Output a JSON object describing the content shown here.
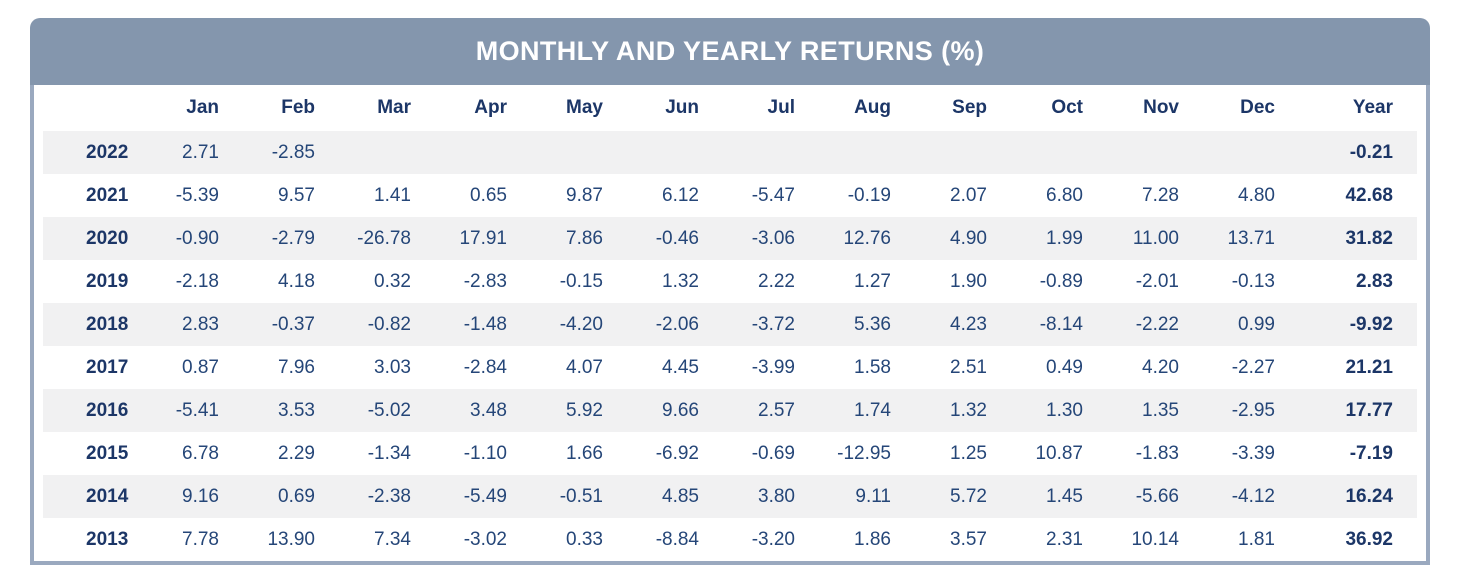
{
  "title": "MONTHLY AND YEARLY RETURNS (%)",
  "colors": {
    "header_bg": "#8496AD",
    "body_border": "#9AA9BF",
    "heading_text": "#1C3667",
    "value_text": "#254678",
    "row_stripe": "#F1F1F2",
    "title_text": "#FFFFFF"
  },
  "chart_data": {
    "type": "table",
    "title": "MONTHLY AND YEARLY RETURNS (%)",
    "columns": [
      "Jan",
      "Feb",
      "Mar",
      "Apr",
      "May",
      "Jun",
      "Jul",
      "Aug",
      "Sep",
      "Oct",
      "Nov",
      "Dec",
      "Year"
    ],
    "rows": [
      {
        "year": "2022",
        "monthly": [
          "2.71",
          "-2.85",
          "",
          "",
          "",
          "",
          "",
          "",
          "",
          "",
          "",
          ""
        ],
        "year_total": "-0.21"
      },
      {
        "year": "2021",
        "monthly": [
          "-5.39",
          "9.57",
          "1.41",
          "0.65",
          "9.87",
          "6.12",
          "-5.47",
          "-0.19",
          "2.07",
          "6.80",
          "7.28",
          "4.80"
        ],
        "year_total": "42.68"
      },
      {
        "year": "2020",
        "monthly": [
          "-0.90",
          "-2.79",
          "-26.78",
          "17.91",
          "7.86",
          "-0.46",
          "-3.06",
          "12.76",
          "4.90",
          "1.99",
          "11.00",
          "13.71"
        ],
        "year_total": "31.82"
      },
      {
        "year": "2019",
        "monthly": [
          "-2.18",
          "4.18",
          "0.32",
          "-2.83",
          "-0.15",
          "1.32",
          "2.22",
          "1.27",
          "1.90",
          "-0.89",
          "-2.01",
          "-0.13"
        ],
        "year_total": "2.83"
      },
      {
        "year": "2018",
        "monthly": [
          "2.83",
          "-0.37",
          "-0.82",
          "-1.48",
          "-4.20",
          "-2.06",
          "-3.72",
          "5.36",
          "4.23",
          "-8.14",
          "-2.22",
          "0.99"
        ],
        "year_total": "-9.92"
      },
      {
        "year": "2017",
        "monthly": [
          "0.87",
          "7.96",
          "3.03",
          "-2.84",
          "4.07",
          "4.45",
          "-3.99",
          "1.58",
          "2.51",
          "0.49",
          "4.20",
          "-2.27"
        ],
        "year_total": "21.21"
      },
      {
        "year": "2016",
        "monthly": [
          "-5.41",
          "3.53",
          "-5.02",
          "3.48",
          "5.92",
          "9.66",
          "2.57",
          "1.74",
          "1.32",
          "1.30",
          "1.35",
          "-2.95"
        ],
        "year_total": "17.77"
      },
      {
        "year": "2015",
        "monthly": [
          "6.78",
          "2.29",
          "-1.34",
          "-1.10",
          "1.66",
          "-6.92",
          "-0.69",
          "-12.95",
          "1.25",
          "10.87",
          "-1.83",
          "-3.39"
        ],
        "year_total": "-7.19"
      },
      {
        "year": "2014",
        "monthly": [
          "9.16",
          "0.69",
          "-2.38",
          "-5.49",
          "-0.51",
          "4.85",
          "3.80",
          "9.11",
          "5.72",
          "1.45",
          "-5.66",
          "-4.12"
        ],
        "year_total": "16.24"
      },
      {
        "year": "2013",
        "monthly": [
          "7.78",
          "13.90",
          "7.34",
          "-3.02",
          "0.33",
          "-8.84",
          "-3.20",
          "1.86",
          "3.57",
          "2.31",
          "10.14",
          "1.81"
        ],
        "year_total": "36.92"
      }
    ]
  }
}
